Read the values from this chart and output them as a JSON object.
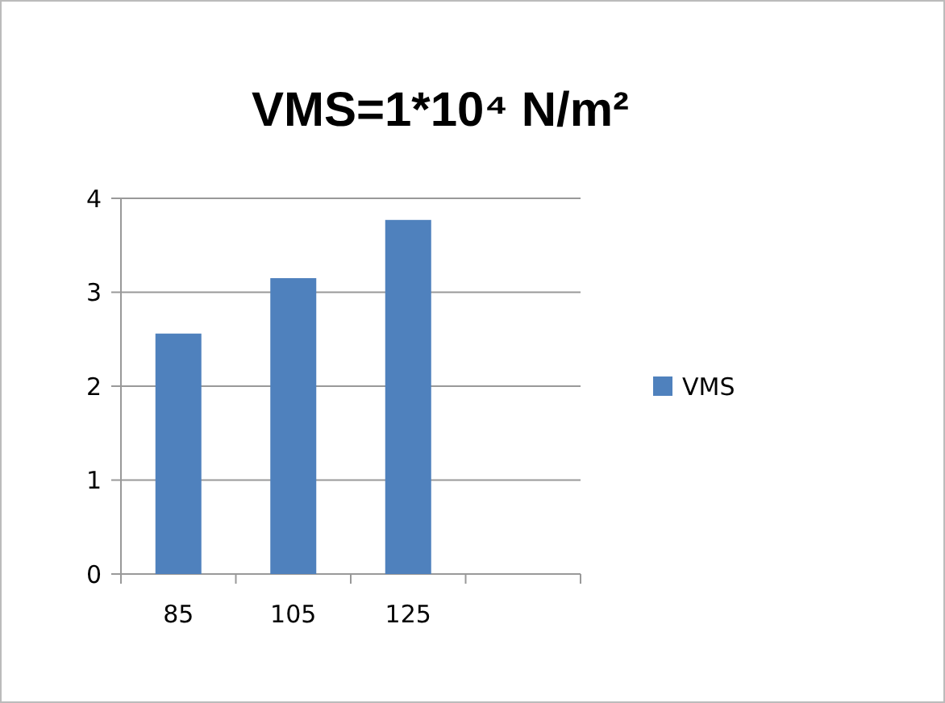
{
  "chart_data": {
    "type": "bar",
    "title": "VMS=1*10⁴ N/m²",
    "categories": [
      "85",
      "105",
      "125",
      null
    ],
    "series": [
      {
        "name": "VMS",
        "color": "#4f81bd",
        "values": [
          2.56,
          3.15,
          3.77,
          null
        ]
      }
    ],
    "ylim": [
      0,
      4
    ],
    "yticks": [
      0,
      1,
      2,
      3,
      4
    ],
    "grid": "y",
    "legend": "right"
  }
}
